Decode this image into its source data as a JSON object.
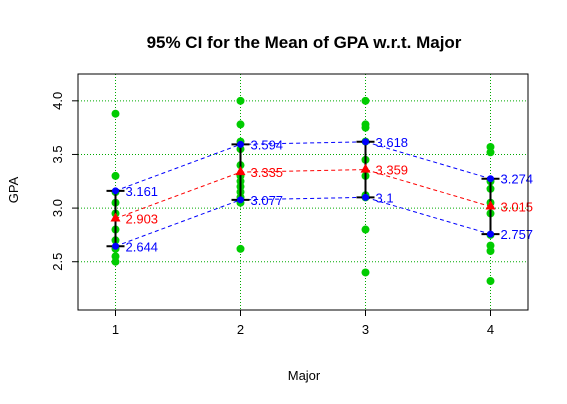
{
  "chart_data": {
    "type": "scatter",
    "title": "95% CI for the Mean of GPA w.r.t. Major",
    "xlabel": "Major",
    "ylabel": "GPA",
    "xlim": [
      0.7,
      4.3
    ],
    "ylim": [
      2.05,
      4.25
    ],
    "x_ticks": [
      1,
      2,
      3,
      4
    ],
    "x_tick_labels": [
      "1",
      "2",
      "3",
      "4"
    ],
    "y_ticks": [
      2.5,
      3.0,
      3.5,
      4.0
    ],
    "y_tick_labels": [
      "2.5",
      "3.0",
      "3.5",
      "4.0"
    ],
    "grid": true,
    "colors": {
      "points": "#00cc00",
      "grid": "#00aa00",
      "mean": "#ff0000",
      "ci": "#0000ff",
      "bars": "#000000"
    },
    "observations": [
      {
        "x": 1,
        "values": [
          3.88,
          3.3,
          3.15,
          3.05,
          2.95,
          2.8,
          2.7,
          2.62,
          2.55,
          2.5
        ]
      },
      {
        "x": 2,
        "values": [
          4.0,
          3.78,
          3.62,
          3.55,
          3.4,
          3.3,
          3.25,
          3.2,
          3.15,
          3.1,
          3.05,
          2.62
        ]
      },
      {
        "x": 3,
        "values": [
          4.0,
          3.78,
          3.75,
          3.62,
          3.45,
          3.3,
          3.12,
          3.1,
          2.8,
          2.4
        ]
      },
      {
        "x": 4,
        "values": [
          3.57,
          3.52,
          3.25,
          3.18,
          3.05,
          2.95,
          2.75,
          2.65,
          2.6,
          2.32
        ]
      }
    ],
    "categories": [
      "1",
      "2",
      "3",
      "4"
    ],
    "series": [
      {
        "values": [
          3.161,
          3.594,
          3.618,
          3.274
        ],
        "labels": [
          "3.161",
          "3.594",
          "3.618",
          "3.274"
        ]
      },
      {
        "values": [
          2.903,
          3.335,
          3.359,
          3.015
        ],
        "labels": [
          "2.903",
          "3.335",
          "3.359",
          "3.015"
        ]
      },
      {
        "values": [
          2.644,
          3.077,
          3.1,
          2.757
        ],
        "labels": [
          "2.644",
          "3.077",
          "3.1",
          "2.757"
        ]
      }
    ]
  }
}
